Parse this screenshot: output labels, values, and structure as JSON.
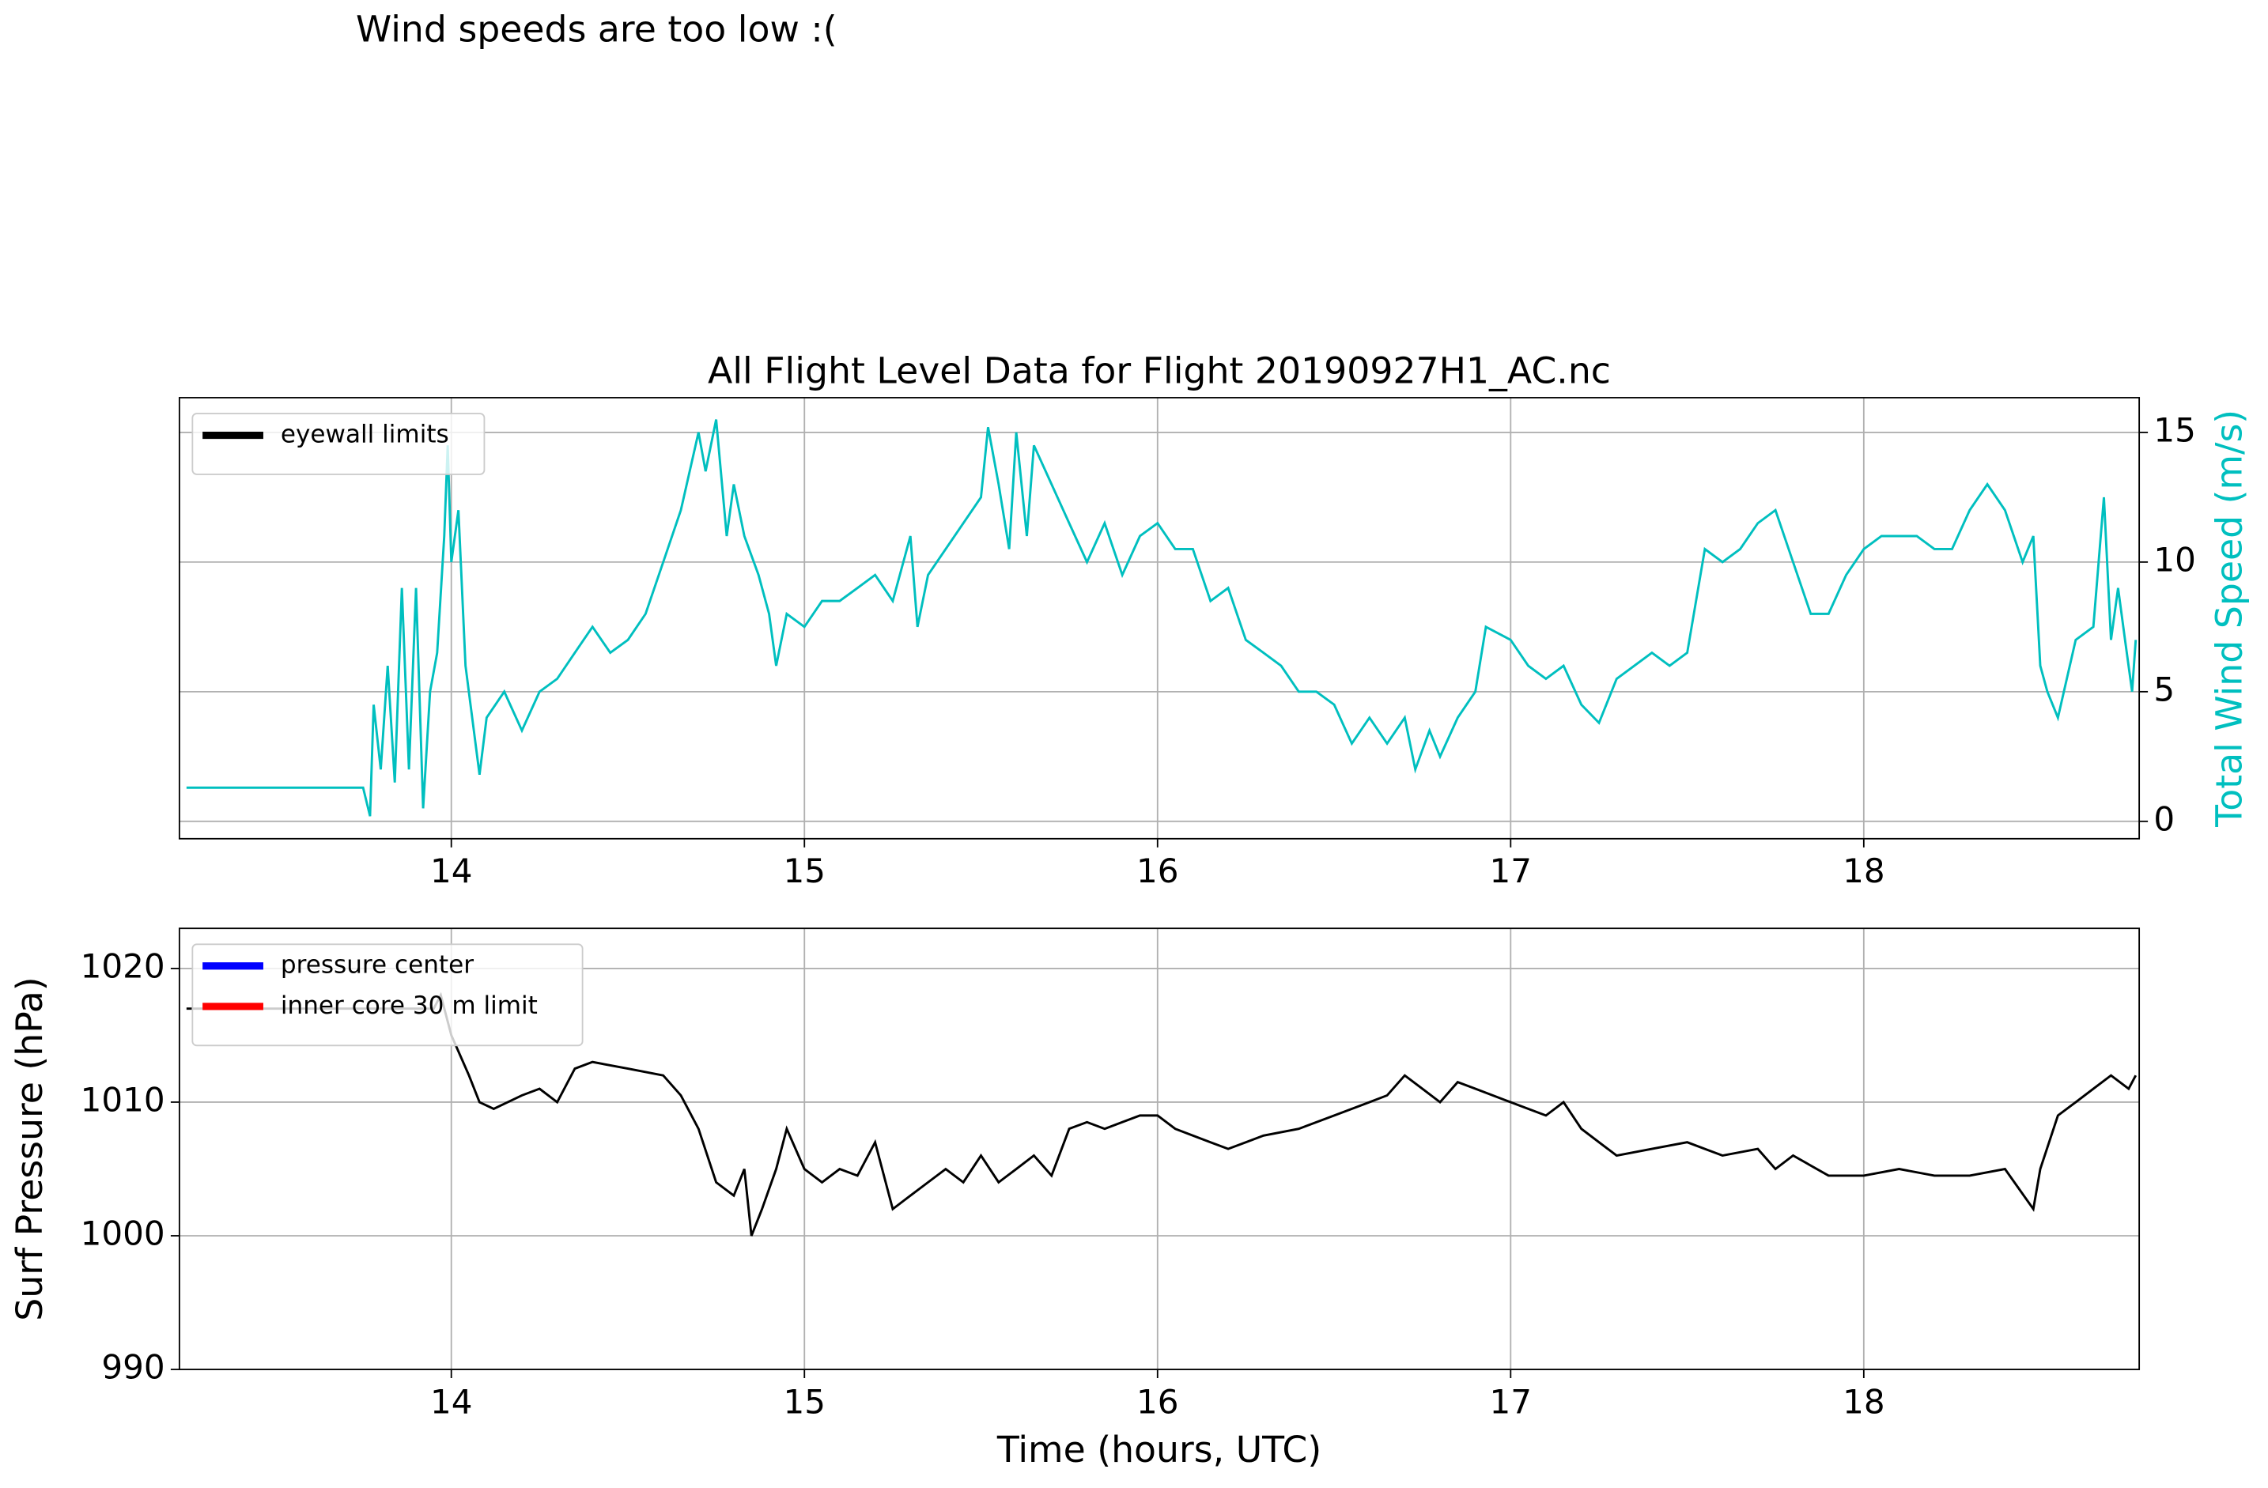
{
  "annotation": "Wind speeds are too low :(",
  "chart_data": [
    {
      "type": "line",
      "title": "All Flight Level Data for Flight 20190927H1_AC.nc",
      "y2label": "Total Wind Speed (m/s)",
      "y2label_color": "#00bfbf",
      "xlim": [
        13.23,
        18.78
      ],
      "xticks": [
        14,
        15,
        16,
        17,
        18
      ],
      "y2lim": [
        -0.67,
        16.34
      ],
      "y2ticks": [
        0,
        5,
        10,
        15
      ],
      "grid": true,
      "legend_loc": "upper left",
      "legend": [
        {
          "name": "eyewall limits",
          "color": "#000000"
        }
      ],
      "x": [
        13.25,
        13.75,
        13.77,
        13.78,
        13.8,
        13.82,
        13.84,
        13.86,
        13.88,
        13.9,
        13.92,
        13.94,
        13.96,
        13.98,
        13.99,
        14.0,
        14.02,
        14.04,
        14.08,
        14.1,
        14.15,
        14.2,
        14.25,
        14.3,
        14.35,
        14.4,
        14.45,
        14.5,
        14.55,
        14.6,
        14.65,
        14.7,
        14.72,
        14.75,
        14.78,
        14.8,
        14.83,
        14.87,
        14.9,
        14.92,
        14.95,
        15.0,
        15.05,
        15.1,
        15.15,
        15.2,
        15.25,
        15.3,
        15.32,
        15.35,
        15.4,
        15.45,
        15.5,
        15.52,
        15.55,
        15.58,
        15.6,
        15.63,
        15.65,
        15.7,
        15.75,
        15.8,
        15.85,
        15.9,
        15.95,
        16.0,
        16.05,
        16.1,
        16.15,
        16.2,
        16.25,
        16.3,
        16.35,
        16.4,
        16.45,
        16.5,
        16.55,
        16.6,
        16.65,
        16.7,
        16.73,
        16.77,
        16.8,
        16.85,
        16.9,
        16.93,
        17.0,
        17.05,
        17.1,
        17.15,
        17.2,
        17.25,
        17.3,
        17.35,
        17.4,
        17.45,
        17.5,
        17.55,
        17.6,
        17.65,
        17.7,
        17.75,
        17.8,
        17.85,
        17.9,
        17.95,
        18.0,
        18.05,
        18.1,
        18.15,
        18.2,
        18.25,
        18.3,
        18.35,
        18.4,
        18.45,
        18.48,
        18.5,
        18.52,
        18.55,
        18.6,
        18.65,
        18.68,
        18.7,
        18.72,
        18.74,
        18.76,
        18.77
      ],
      "series": [
        {
          "axis": "y2",
          "color": "#00bfbf",
          "values": [
            1.3,
            1.3,
            0.2,
            4.5,
            2,
            6,
            1.5,
            9,
            2,
            9,
            0.5,
            5,
            6.5,
            11,
            14.5,
            10,
            12,
            6,
            1.8,
            4,
            5,
            3.5,
            5,
            5.5,
            6.5,
            7.5,
            6.5,
            7,
            8,
            10,
            12,
            15,
            13.5,
            15.5,
            11,
            13,
            11,
            9.5,
            8,
            6,
            8,
            7.5,
            8.5,
            8.5,
            9,
            9.5,
            8.5,
            11,
            7.5,
            9.5,
            10.5,
            11.5,
            12.5,
            15.2,
            13,
            10.5,
            15,
            11,
            14.5,
            13,
            11.5,
            10,
            11.5,
            9.5,
            11,
            11.5,
            10.5,
            10.5,
            8.5,
            9,
            7,
            6.5,
            6,
            5,
            5,
            4.5,
            3,
            4,
            3,
            4,
            2,
            3.5,
            2.5,
            4,
            5,
            7.5,
            7,
            6,
            5.5,
            6,
            4.5,
            3.8,
            5.5,
            6,
            6.5,
            6,
            6.5,
            10.5,
            10,
            10.5,
            11.5,
            12,
            10,
            8,
            8,
            9.5,
            10.5,
            11,
            11,
            11,
            10.5,
            10.5,
            12,
            13,
            12,
            10,
            11,
            6,
            5,
            4,
            7,
            7.5,
            12.5,
            7,
            9,
            7,
            5,
            7
          ]
        }
      ]
    },
    {
      "type": "line",
      "xlabel": "Time (hours, UTC)",
      "ylabel": "Surf Pressure (hPa)",
      "xlim": [
        13.23,
        18.78
      ],
      "xticks": [
        14,
        15,
        16,
        17,
        18
      ],
      "ylim": [
        990,
        1023
      ],
      "yticks": [
        990,
        1000,
        1010,
        1020
      ],
      "grid": true,
      "legend_loc": "upper left",
      "legend": [
        {
          "name": "pressure center",
          "color": "#0000ff"
        },
        {
          "name": "inner core 30 m limit",
          "color": "#ff0000"
        }
      ],
      "x": [
        13.25,
        13.95,
        13.97,
        14.0,
        14.05,
        14.08,
        14.12,
        14.2,
        14.25,
        14.3,
        14.35,
        14.4,
        14.5,
        14.6,
        14.65,
        14.7,
        14.75,
        14.8,
        14.83,
        14.85,
        14.88,
        14.92,
        14.95,
        15.0,
        15.05,
        15.1,
        15.15,
        15.2,
        15.25,
        15.3,
        15.35,
        15.4,
        15.45,
        15.5,
        15.55,
        15.6,
        15.65,
        15.7,
        15.75,
        15.8,
        15.85,
        15.9,
        15.95,
        16.0,
        16.05,
        16.1,
        16.15,
        16.2,
        16.25,
        16.3,
        16.4,
        16.5,
        16.6,
        16.65,
        16.7,
        16.75,
        16.8,
        16.85,
        16.9,
        17.0,
        17.1,
        17.15,
        17.2,
        17.25,
        17.3,
        17.4,
        17.5,
        17.6,
        17.7,
        17.75,
        17.8,
        17.9,
        18.0,
        18.1,
        18.2,
        18.3,
        18.4,
        18.48,
        18.5,
        18.55,
        18.6,
        18.65,
        18.7,
        18.75,
        18.77
      ],
      "series": [
        {
          "color": "#000000",
          "values": [
            1017,
            1017,
            1018,
            1015,
            1012,
            1010,
            1009.5,
            1010.5,
            1011,
            1010,
            1012.5,
            1013,
            1012.5,
            1012,
            1010.5,
            1008,
            1004,
            1003,
            1005,
            1000,
            1002,
            1005,
            1008,
            1005,
            1004,
            1005,
            1004.5,
            1007,
            1002,
            1003,
            1004,
            1005,
            1004,
            1006,
            1004,
            1005,
            1006,
            1004.5,
            1008,
            1008.5,
            1008,
            1008.5,
            1009,
            1009,
            1008,
            1007.5,
            1007,
            1006.5,
            1007,
            1007.5,
            1008,
            1009,
            1010,
            1010.5,
            1012,
            1011,
            1010,
            1011.5,
            1011,
            1010,
            1009,
            1010,
            1008,
            1007,
            1006,
            1006.5,
            1007,
            1006,
            1006.5,
            1005,
            1006,
            1004.5,
            1004.5,
            1005,
            1004.5,
            1004.5,
            1005,
            1002,
            1005,
            1009,
            1010,
            1011,
            1012,
            1011,
            1012
          ]
        }
      ]
    }
  ]
}
